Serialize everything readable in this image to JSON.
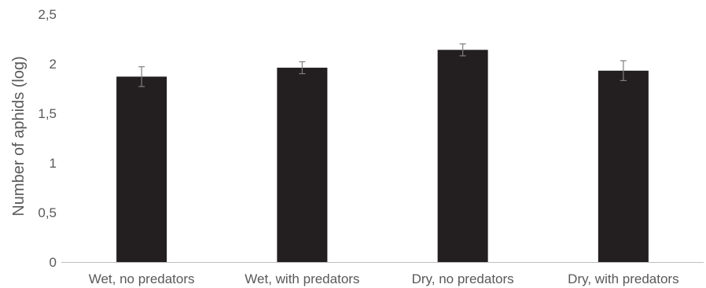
{
  "chart_data": {
    "type": "bar",
    "title": "",
    "xlabel": "",
    "ylabel": "Number of aphids (log)",
    "ylim": [
      0,
      2.5
    ],
    "yticks": [
      "0",
      "0,5",
      "1",
      "1,5",
      "2",
      "2,5"
    ],
    "yticks_values": [
      0,
      0.5,
      1,
      1.5,
      2,
      2.5
    ],
    "categories": [
      "Wet, no predators",
      "Wet, with predators",
      "Dry, no predators",
      "Dry, with predators"
    ],
    "values": [
      1.87,
      1.96,
      2.14,
      1.93
    ],
    "errors": [
      0.1,
      0.06,
      0.06,
      0.1
    ],
    "grid": false,
    "legend": "none",
    "colors": {
      "bar": "#231f20",
      "error_bar": "#7f7f7f",
      "axis": "#bfbfbf",
      "text": "#595959"
    }
  }
}
